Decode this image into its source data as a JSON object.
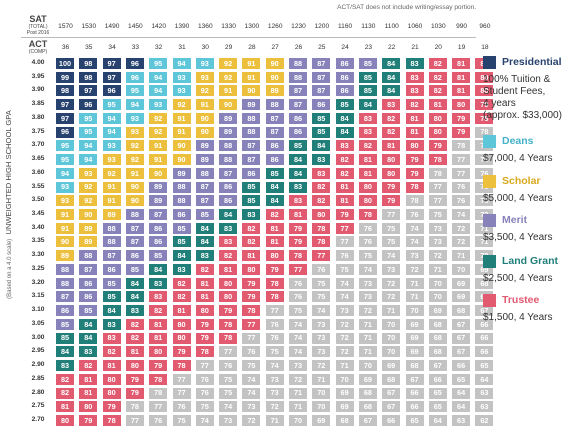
{
  "note": "ACT/SAT does not include writing/essay portion.",
  "sat_header": {
    "title": "SAT",
    "line2": "(TOTAL)",
    "line3": "Post 2016"
  },
  "act_header": {
    "title": "ACT",
    "line2": "(COMP)"
  },
  "sat_scores": [
    "1570",
    "1530",
    "1490",
    "1450",
    "1420",
    "1390",
    "1360",
    "1330",
    "1300",
    "1260",
    "1230",
    "1200",
    "1160",
    "1130",
    "1100",
    "1060",
    "1030",
    "990",
    "960"
  ],
  "act_scores": [
    "36",
    "35",
    "34",
    "33",
    "32",
    "31",
    "30",
    "29",
    "28",
    "27",
    "26",
    "25",
    "24",
    "23",
    "22",
    "21",
    "20",
    "19",
    "18"
  ],
  "axis_label": "UNWEIGHTED HIGH SCHOOL GPA",
  "axis_sublabel": "(Based on a 4.0 scale)",
  "colors": {
    "presidential": "#27426e",
    "deans": "#5ec6d9",
    "scholar": "#ecc03d",
    "merit": "#8782ba",
    "landgrant": "#217f79",
    "trustee": "#e25a70",
    "none": "#c3c3c3"
  },
  "legend": [
    {
      "key": "presidential",
      "label": "Presidential",
      "desc": [
        "100% Tuition &",
        "Student Fees,",
        "4 years",
        "(approx. $33,000)"
      ]
    },
    {
      "key": "deans",
      "label": "Deans",
      "desc": [
        "$7,000, 4 Years"
      ]
    },
    {
      "key": "scholar",
      "label": "Scholar",
      "desc": [
        "$5,000, 4 Years"
      ]
    },
    {
      "key": "merit",
      "label": "Merit",
      "desc": [
        "$3,500, 4 Years"
      ]
    },
    {
      "key": "landgrant",
      "label": "Land Grant",
      "desc": [
        "$2,500, 4 Years"
      ]
    },
    {
      "key": "trustee",
      "label": "Trustee",
      "desc": [
        "$1,500, 4 Years"
      ]
    }
  ],
  "rows": [
    {
      "gpa": "4.00",
      "values": [
        100,
        98,
        97,
        96,
        95,
        94,
        93,
        92,
        91,
        90,
        88,
        87,
        86,
        85,
        84,
        83,
        82,
        81,
        80
      ],
      "tiers": "PPPPDDDSSSMMMMLLTTT"
    },
    {
      "gpa": "3.95",
      "values": [
        99,
        98,
        97,
        96,
        94,
        93,
        93,
        92,
        91,
        90,
        88,
        87,
        86,
        85,
        84,
        83,
        82,
        81,
        80
      ],
      "tiers": "PPPDDDSSSSMMMLLTTTT"
    },
    {
      "gpa": "3.90",
      "values": [
        98,
        97,
        96,
        95,
        94,
        93,
        92,
        91,
        90,
        89,
        87,
        87,
        86,
        85,
        84,
        83,
        82,
        81,
        80
      ],
      "tiers": "PPPDDDSSSSMMMLLTTTT"
    },
    {
      "gpa": "3.85",
      "values": [
        97,
        96,
        95,
        94,
        93,
        92,
        91,
        90,
        89,
        88,
        87,
        86,
        85,
        84,
        83,
        82,
        81,
        80,
        79
      ],
      "tiers": "PPDDDSSSMMMMLLTTTTT"
    },
    {
      "gpa": "3.80",
      "values": [
        97,
        95,
        94,
        93,
        92,
        91,
        90,
        89,
        88,
        87,
        86,
        85,
        84,
        83,
        82,
        81,
        80,
        79,
        78
      ],
      "tiers": "PDDDSSSMMMMLLTTTTTT"
    },
    {
      "gpa": "3.75",
      "values": [
        96,
        95,
        94,
        93,
        92,
        91,
        90,
        89,
        88,
        87,
        86,
        85,
        84,
        83,
        82,
        81,
        80,
        79,
        78
      ],
      "tiers": "PDDSSSSMMMMLLTTTTTN"
    },
    {
      "gpa": "3.70",
      "values": [
        95,
        94,
        93,
        92,
        91,
        90,
        89,
        88,
        87,
        86,
        85,
        84,
        83,
        82,
        81,
        80,
        79,
        78,
        77
      ],
      "tiers": "DDDSSSMMMMLLTTTTTNN"
    },
    {
      "gpa": "3.65",
      "values": [
        95,
        94,
        93,
        92,
        91,
        90,
        89,
        88,
        87,
        86,
        84,
        83,
        82,
        81,
        80,
        79,
        78,
        77,
        76
      ],
      "tiers": "DDSSSSMMMMLLTTTTTNN"
    },
    {
      "gpa": "3.60",
      "values": [
        94,
        93,
        92,
        91,
        90,
        89,
        88,
        87,
        86,
        85,
        84,
        83,
        82,
        81,
        80,
        79,
        78,
        77,
        76
      ],
      "tiers": "DSSSSMMMMLLTTTTTNNN"
    },
    {
      "gpa": "3.55",
      "values": [
        93,
        92,
        91,
        90,
        89,
        88,
        87,
        86,
        85,
        84,
        83,
        82,
        81,
        80,
        79,
        78,
        77,
        76,
        75
      ],
      "tiers": "DSSSMMMMLLLTTTTTNNN"
    },
    {
      "gpa": "3.50",
      "values": [
        93,
        92,
        91,
        90,
        89,
        88,
        87,
        86,
        85,
        84,
        83,
        82,
        81,
        80,
        79,
        78,
        77,
        76,
        75
      ],
      "tiers": "SSSSMMMMLLTTTTTNNNN"
    },
    {
      "gpa": "3.45",
      "values": [
        91,
        90,
        89,
        88,
        87,
        86,
        85,
        84,
        83,
        82,
        81,
        80,
        79,
        78,
        77,
        76,
        75,
        74,
        73
      ],
      "tiers": "SSSMMMMLLTTTTTNNNNN"
    },
    {
      "gpa": "3.40",
      "values": [
        91,
        89,
        88,
        87,
        86,
        85,
        84,
        83,
        82,
        81,
        79,
        78,
        77,
        76,
        75,
        74,
        73,
        72,
        71
      ],
      "tiers": "SSMMMMLLTTTTTNNNNNN"
    },
    {
      "gpa": "3.35",
      "values": [
        90,
        89,
        88,
        87,
        86,
        85,
        84,
        83,
        82,
        81,
        79,
        78,
        77,
        76,
        75,
        74,
        73,
        72,
        71
      ],
      "tiers": "SSMMMLLTTTTTNNNNNNN"
    },
    {
      "gpa": "3.30",
      "values": [
        89,
        88,
        87,
        86,
        85,
        84,
        83,
        82,
        81,
        80,
        78,
        77,
        76,
        75,
        74,
        73,
        72,
        71,
        70
      ],
      "tiers": "SMMMMLLTTTTTNNNNNNN"
    },
    {
      "gpa": "3.25",
      "values": [
        88,
        87,
        86,
        85,
        84,
        83,
        82,
        81,
        80,
        79,
        77,
        76,
        75,
        74,
        73,
        72,
        71,
        70,
        69
      ],
      "tiers": "MMMMLLTTTTTNNNNNNNN"
    },
    {
      "gpa": "3.20",
      "values": [
        88,
        86,
        85,
        84,
        83,
        82,
        81,
        80,
        79,
        78,
        76,
        75,
        74,
        73,
        72,
        71,
        70,
        69,
        68
      ],
      "tiers": "MMMLLTTTTTNNNNNNNNN"
    },
    {
      "gpa": "3.15",
      "values": [
        87,
        86,
        85,
        84,
        83,
        82,
        81,
        80,
        79,
        78,
        76,
        75,
        74,
        73,
        72,
        71,
        70,
        69,
        68
      ],
      "tiers": "MMLLTTTTTTNNNNNNNNN"
    },
    {
      "gpa": "3.10",
      "values": [
        86,
        85,
        84,
        83,
        82,
        81,
        80,
        79,
        78,
        77,
        75,
        74,
        73,
        72,
        71,
        70,
        69,
        68,
        67
      ],
      "tiers": "MMLLTTTTTNNNNNNNNNN"
    },
    {
      "gpa": "3.05",
      "values": [
        85,
        84,
        83,
        82,
        81,
        80,
        79,
        78,
        77,
        76,
        74,
        73,
        72,
        71,
        70,
        69,
        68,
        67,
        66
      ],
      "tiers": "MLLTTTTTTNNNNNNNNNN"
    },
    {
      "gpa": "3.00",
      "values": [
        85,
        84,
        83,
        82,
        81,
        80,
        79,
        78,
        77,
        76,
        74,
        73,
        72,
        71,
        70,
        69,
        68,
        67,
        66
      ],
      "tiers": "LLTTTTTTNNNNNNNNNNN"
    },
    {
      "gpa": "2.95",
      "values": [
        84,
        83,
        82,
        81,
        80,
        79,
        78,
        77,
        76,
        75,
        74,
        73,
        72,
        71,
        70,
        69,
        68,
        67,
        66
      ],
      "tiers": "LLTTTTTNNNNNNNNNNNN"
    },
    {
      "gpa": "2.90",
      "values": [
        83,
        82,
        81,
        80,
        79,
        78,
        77,
        76,
        75,
        74,
        73,
        72,
        71,
        70,
        69,
        68,
        67,
        66,
        65
      ],
      "tiers": "LTTTTTNNNNNNNNNNNNN"
    },
    {
      "gpa": "2.85",
      "values": [
        82,
        81,
        80,
        79,
        78,
        77,
        76,
        75,
        74,
        73,
        72,
        71,
        70,
        69,
        68,
        67,
        66,
        65,
        64
      ],
      "tiers": "TTTTTNNNNNNNNNNNNNN"
    },
    {
      "gpa": "2.80",
      "values": [
        82,
        81,
        80,
        79,
        78,
        77,
        76,
        75,
        74,
        73,
        71,
        70,
        69,
        68,
        67,
        66,
        65,
        64,
        63
      ],
      "tiers": "TTTTNNNNNNNNNNNNNNN"
    },
    {
      "gpa": "2.75",
      "values": [
        81,
        80,
        79,
        78,
        77,
        76,
        75,
        74,
        73,
        72,
        71,
        70,
        69,
        68,
        67,
        66,
        65,
        64,
        63
      ],
      "tiers": "TTTNNNNNNNNNNNNNNNN"
    },
    {
      "gpa": "2.70",
      "values": [
        80,
        79,
        78,
        77,
        76,
        75,
        74,
        73,
        72,
        71,
        70,
        69,
        68,
        67,
        66,
        65,
        64,
        63,
        62
      ],
      "tiers": "TTTNNNNNNNNNNNNNNNN"
    }
  ]
}
